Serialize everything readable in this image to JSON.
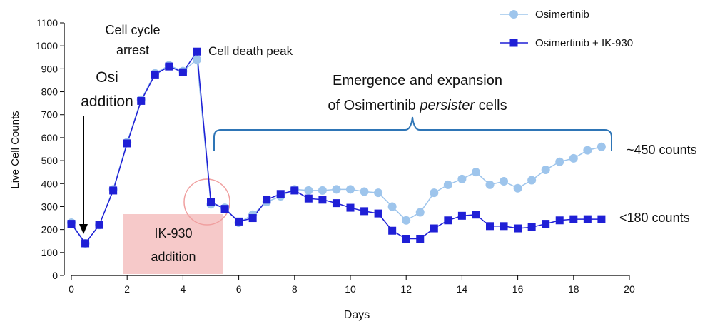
{
  "chart_data": {
    "type": "line",
    "x_label": "Days",
    "y_label": "Live Cell Counts",
    "x": [
      0,
      0.5,
      1,
      1.5,
      2,
      2.5,
      3,
      3.5,
      4,
      4.5,
      5,
      5.5,
      6,
      6.5,
      7,
      7.5,
      8,
      8.5,
      9,
      9.5,
      10,
      10.5,
      11,
      11.5,
      12,
      12.5,
      13,
      13.5,
      14,
      14.5,
      15,
      15.5,
      16,
      16.5,
      17,
      17.5,
      18,
      18.5,
      19
    ],
    "series": [
      {
        "name": "Osimertinib",
        "color": "#9ec5ec",
        "marker": "circle",
        "values": [
          230,
          140,
          220,
          375,
          580,
          765,
          880,
          915,
          890,
          940,
          310,
          295,
          230,
          265,
          320,
          345,
          375,
          370,
          370,
          375,
          375,
          365,
          360,
          300,
          240,
          275,
          360,
          395,
          420,
          450,
          395,
          410,
          380,
          415,
          460,
          495,
          510,
          545,
          560
        ]
      },
      {
        "name": "Osimertinib + IK-930",
        "color": "#1f1fd6",
        "marker": "square",
        "values": [
          225,
          140,
          220,
          370,
          575,
          760,
          875,
          910,
          885,
          975,
          320,
          290,
          235,
          250,
          330,
          355,
          370,
          335,
          330,
          315,
          295,
          280,
          270,
          195,
          160,
          160,
          205,
          240,
          260,
          265,
          215,
          215,
          205,
          210,
          225,
          240,
          245,
          245,
          245
        ]
      }
    ],
    "xlim": [
      0,
      20
    ],
    "ylim": [
      0,
      1100
    ],
    "xticks": [
      0,
      2,
      4,
      6,
      8,
      10,
      12,
      14,
      16,
      18,
      20
    ],
    "yticks": [
      0,
      100,
      200,
      300,
      400,
      500,
      600,
      700,
      800,
      900,
      1000,
      1100
    ],
    "annotations": [
      {
        "lines": [
          [
            "Cell cycle"
          ],
          [
            "arrest"
          ]
        ]
      },
      {
        "lines": [
          [
            "Osi"
          ],
          [
            "addition"
          ]
        ]
      },
      {
        "lines": [
          [
            "Cell death peak"
          ]
        ]
      },
      {
        "lines": [
          [
            "Emergence and expansion"
          ],
          [
            "of Osimertinib ",
            "persister",
            " cells"
          ]
        ]
      },
      {
        "lines": [
          [
            "~450 counts"
          ]
        ]
      },
      {
        "lines": [
          [
            "<180 counts"
          ]
        ]
      },
      {
        "lines": [
          [
            "IK-930"
          ],
          [
            "addition"
          ]
        ]
      }
    ]
  }
}
